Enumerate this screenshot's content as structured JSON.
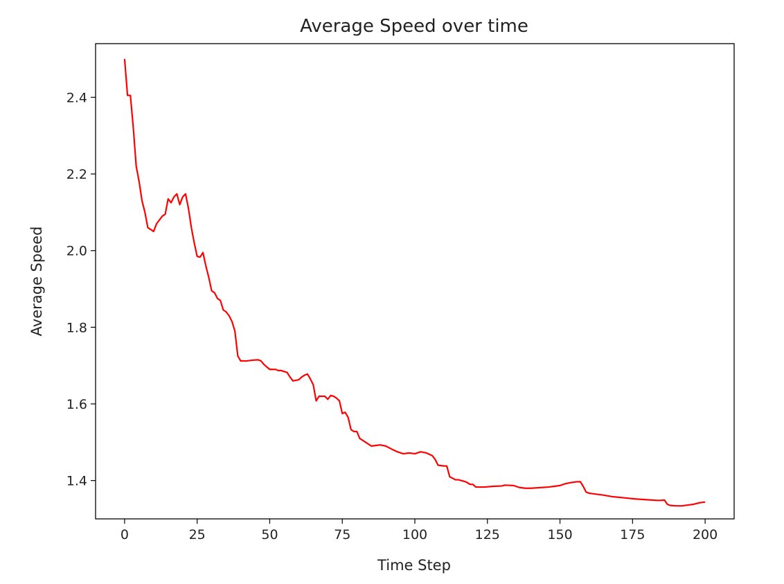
{
  "chart_data": {
    "type": "line",
    "title": "Average Speed over time",
    "xlabel": "Time Step",
    "ylabel": "Average Speed",
    "xlim": [
      -10,
      210
    ],
    "ylim": [
      1.3,
      2.54
    ],
    "xticks": [
      0,
      25,
      50,
      75,
      100,
      125,
      150,
      175,
      200
    ],
    "xtick_labels": [
      "0",
      "25",
      "50",
      "75",
      "100",
      "125",
      "150",
      "175",
      "200"
    ],
    "yticks": [
      1.4,
      1.6,
      1.8,
      2.0,
      2.2,
      2.4
    ],
    "ytick_labels": [
      "1.4",
      "1.6",
      "1.8",
      "2.0",
      "2.2",
      "2.4"
    ],
    "grid": false,
    "series": [
      {
        "color": "#ff0000",
        "x": [
          0,
          1,
          2,
          3,
          4,
          5,
          6,
          7,
          8,
          10,
          11,
          12,
          13,
          14,
          15,
          16,
          17,
          18,
          19,
          20,
          21,
          22,
          23,
          24,
          25,
          26,
          27,
          28,
          29,
          30,
          31,
          32,
          33,
          34,
          35,
          36,
          37,
          38,
          39,
          40,
          42,
          44,
          46,
          47,
          48,
          50,
          52,
          53,
          54,
          56,
          57,
          58,
          60,
          61,
          62,
          63,
          64,
          65,
          66,
          67,
          68,
          69,
          70,
          71,
          72,
          73,
          74,
          75,
          76,
          77,
          78,
          79,
          80,
          81,
          82,
          83,
          85,
          88,
          90,
          92,
          94,
          96,
          98,
          100,
          102,
          104,
          106,
          107,
          108,
          110,
          111,
          112,
          114,
          115,
          117,
          118,
          119,
          120,
          121,
          124,
          127,
          130,
          131,
          134,
          136,
          138,
          140,
          142,
          144,
          146,
          148,
          150,
          152,
          154,
          156,
          157,
          158,
          159,
          160,
          162,
          165,
          168,
          172,
          176,
          180,
          184,
          186,
          187,
          188,
          190,
          192,
          194,
          196,
          198,
          200
        ],
        "values": [
          2.5,
          2.405,
          2.405,
          2.32,
          2.22,
          2.18,
          2.13,
          2.1,
          2.06,
          2.05,
          2.07,
          2.08,
          2.09,
          2.095,
          2.135,
          2.125,
          2.14,
          2.148,
          2.12,
          2.14,
          2.148,
          2.11,
          2.06,
          2.02,
          1.985,
          1.983,
          1.995,
          1.96,
          1.93,
          1.895,
          1.89,
          1.875,
          1.87,
          1.845,
          1.84,
          1.83,
          1.815,
          1.79,
          1.725,
          1.712,
          1.712,
          1.714,
          1.715,
          1.712,
          1.703,
          1.69,
          1.69,
          1.687,
          1.687,
          1.682,
          1.67,
          1.66,
          1.663,
          1.67,
          1.675,
          1.678,
          1.665,
          1.65,
          1.608,
          1.62,
          1.62,
          1.62,
          1.612,
          1.622,
          1.62,
          1.615,
          1.608,
          1.575,
          1.578,
          1.565,
          1.533,
          1.528,
          1.528,
          1.51,
          1.505,
          1.5,
          1.49,
          1.493,
          1.49,
          1.482,
          1.475,
          1.47,
          1.472,
          1.47,
          1.475,
          1.472,
          1.465,
          1.455,
          1.44,
          1.438,
          1.438,
          1.41,
          1.402,
          1.402,
          1.398,
          1.395,
          1.39,
          1.39,
          1.383,
          1.383,
          1.385,
          1.386,
          1.388,
          1.387,
          1.382,
          1.38,
          1.38,
          1.381,
          1.382,
          1.383,
          1.385,
          1.387,
          1.392,
          1.395,
          1.397,
          1.397,
          1.385,
          1.37,
          1.367,
          1.365,
          1.362,
          1.358,
          1.355,
          1.352,
          1.35,
          1.348,
          1.349,
          1.338,
          1.335,
          1.334,
          1.334,
          1.336,
          1.338,
          1.342,
          1.344
        ]
      }
    ]
  }
}
